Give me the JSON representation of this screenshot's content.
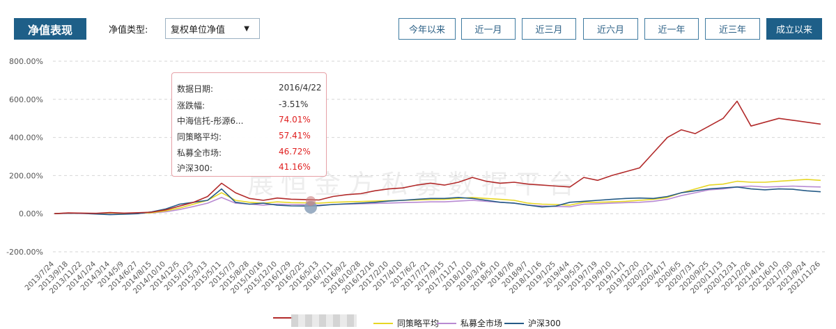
{
  "header": {
    "title": "净值表现",
    "type_label": "净值类型:",
    "type_value": "复权单位净值",
    "range_buttons": [
      "今年以来",
      "近一月",
      "近三月",
      "近六月",
      "近一年",
      "近三年",
      "成立以来"
    ],
    "active_range": "成立以来"
  },
  "watermark": "展恒金方私募数据平台",
  "tooltip": {
    "date_label": "数据日期:",
    "date_value": "2016/4/22",
    "change_label": "涨跌幅:",
    "change_value": "-3.51%",
    "rows": [
      {
        "label": "中海信托-彤源6...",
        "value": "74.01%"
      },
      {
        "label": "同策略平均:",
        "value": "57.41%"
      },
      {
        "label": "私募全市场:",
        "value": "46.72%"
      },
      {
        "label": "沪深300:",
        "value": "41.16%"
      }
    ]
  },
  "colors": {
    "fund": "#b22a2a",
    "strategy_avg": "#e6d624",
    "market": "#b88ad2",
    "hs300": "#255a86",
    "accent": "#1e5f88"
  },
  "chart_data": {
    "type": "line",
    "ylim": [
      -200,
      800
    ],
    "yticks": [
      "800.00%",
      "600.00%",
      "400.00%",
      "200.00%",
      "0.00%",
      "-200.00%"
    ],
    "x_tick_labels": [
      "2013/7/24",
      "2013/9/18",
      "2013/11/22",
      "2014/1/24",
      "2014/3/14",
      "2014/5/9",
      "2014/6/27",
      "2014/8/15",
      "2014/10/10",
      "2014/12/5",
      "2015/1/23",
      "2015/3/13",
      "2015/5/11",
      "2015/7/3",
      "2015/8/28",
      "2015/10/16",
      "2015/12/10",
      "2016/1/29",
      "2016/2/25",
      "2016/5/13",
      "2016/7/11",
      "2016/9/2",
      "2016/10/28",
      "2016/12/16",
      "2017/2/10",
      "2017/4/10",
      "2017/6/2",
      "2017/7/21",
      "2017/9/15",
      "2017/11/17",
      "2018/1/10",
      "2018/3/16",
      "2018/5/10",
      "2018/7/6",
      "2018/9/7",
      "2018/11/16",
      "2019/1/25",
      "2019/4/4",
      "2019/5/31",
      "2019/7/19",
      "2019/9/10",
      "2019/11/1",
      "2019/12/20",
      "2020/2/21",
      "2020/4/17",
      "2020/6/5",
      "2020/7/31",
      "2020/9/25",
      "2020/11/13",
      "2020/12/31",
      "2021/2/26",
      "2021/4/16",
      "2021/6/10",
      "2021/7/30",
      "2021/9/24",
      "2021/11/26"
    ],
    "legend_position": "bottom",
    "series": [
      {
        "name": "",
        "values": [
          0,
          4,
          3,
          2,
          6,
          3,
          5,
          8,
          20,
          40,
          60,
          90,
          160,
          110,
          80,
          70,
          82,
          76,
          74,
          72,
          90,
          100,
          105,
          120,
          130,
          135,
          150,
          160,
          150,
          165,
          190,
          170,
          160,
          165,
          155,
          150,
          145,
          140,
          190,
          175,
          200,
          220,
          240,
          320,
          400,
          440,
          420,
          460,
          500,
          590,
          460,
          480,
          500,
          490,
          480,
          470
        ]
      },
      {
        "name": "同策略平均",
        "values": [
          0,
          3,
          2,
          1,
          4,
          2,
          3,
          5,
          15,
          30,
          50,
          70,
          110,
          70,
          60,
          55,
          62,
          58,
          57,
          55,
          60,
          62,
          64,
          66,
          68,
          70,
          72,
          74,
          75,
          80,
          85,
          80,
          75,
          70,
          55,
          50,
          48,
          45,
          60,
          60,
          62,
          65,
          70,
          75,
          85,
          110,
          130,
          150,
          155,
          170,
          165,
          165,
          170,
          175,
          180,
          175
        ]
      },
      {
        "name": "私募全市场",
        "values": [
          0,
          2,
          1,
          0,
          3,
          1,
          2,
          4,
          10,
          22,
          38,
          55,
          85,
          55,
          50,
          45,
          50,
          48,
          47,
          45,
          48,
          50,
          52,
          54,
          56,
          58,
          60,
          62,
          62,
          66,
          70,
          65,
          60,
          55,
          45,
          40,
          38,
          36,
          50,
          52,
          55,
          58,
          60,
          65,
          75,
          95,
          110,
          125,
          130,
          140,
          145,
          140,
          142,
          145,
          142,
          140
        ]
      },
      {
        "name": "沪深300",
        "values": [
          0,
          3,
          2,
          -2,
          -5,
          -3,
          0,
          10,
          25,
          50,
          60,
          70,
          130,
          60,
          50,
          55,
          45,
          41,
          40,
          42,
          48,
          52,
          55,
          60,
          66,
          70,
          75,
          80,
          80,
          85,
          80,
          70,
          60,
          55,
          45,
          35,
          40,
          60,
          65,
          70,
          75,
          80,
          82,
          80,
          90,
          110,
          120,
          130,
          135,
          140,
          130,
          125,
          130,
          128,
          120,
          115
        ]
      }
    ]
  },
  "legend": {
    "fund_label": "",
    "strategy_label": "同策略平均",
    "market_label": "私募全市场",
    "hs300_label": "沪深300"
  }
}
